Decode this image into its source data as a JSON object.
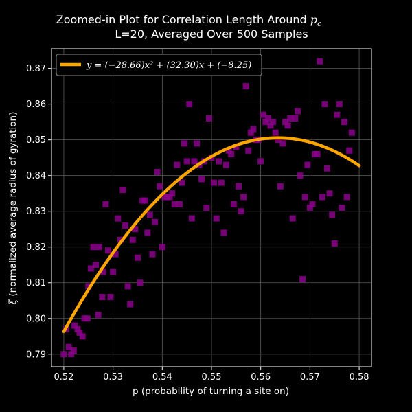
{
  "chart_data": {
    "type": "scatter",
    "title_line1": "Zoomed-in Plot for Correlation Length Around ",
    "title_symbol": "p",
    "title_subscript": "c",
    "title_line2": "L=20, Averaged Over 500 Samples",
    "xlabel": "p (probability of turning a site on)",
    "ylabel_symbol": "ξ",
    "ylabel_text": " (normalized average radius of gyration)",
    "xlim": [
      0.5175,
      0.5825
    ],
    "ylim": [
      0.7865,
      0.8755
    ],
    "xticks": [
      0.52,
      0.53,
      0.54,
      0.55,
      0.56,
      0.57,
      0.58
    ],
    "xtick_labels": [
      "0.52",
      "0.53",
      "0.54",
      "0.55",
      "0.56",
      "0.57",
      "0.58"
    ],
    "yticks": [
      0.79,
      0.8,
      0.81,
      0.82,
      0.83,
      0.84,
      0.85,
      0.86,
      0.87
    ],
    "ytick_labels": [
      "0.79",
      "0.80",
      "0.81",
      "0.82",
      "0.83",
      "0.84",
      "0.85",
      "0.86",
      "0.87"
    ],
    "grid": true,
    "legend_placement": "top-left",
    "legend_label": "y = (−28.66)x² + (32.30)x + (−8.25)",
    "fit": {
      "a": -28.66,
      "b": 32.3,
      "c": -8.25,
      "x_range": [
        0.52,
        0.58
      ]
    },
    "colors": {
      "marker": "#8b008b",
      "fit_line": "#ffa500",
      "background": "#000000",
      "grid": "#5a5a5a"
    },
    "points": [
      [
        0.52,
        0.79
      ],
      [
        0.5205,
        0.797
      ],
      [
        0.521,
        0.792
      ],
      [
        0.5215,
        0.79
      ],
      [
        0.522,
        0.791
      ],
      [
        0.5222,
        0.798
      ],
      [
        0.5228,
        0.797
      ],
      [
        0.5232,
        0.796
      ],
      [
        0.5238,
        0.795
      ],
      [
        0.5242,
        0.8
      ],
      [
        0.5248,
        0.8
      ],
      [
        0.525,
        0.809
      ],
      [
        0.5255,
        0.814
      ],
      [
        0.526,
        0.82
      ],
      [
        0.5265,
        0.815
      ],
      [
        0.527,
        0.801
      ],
      [
        0.5272,
        0.82
      ],
      [
        0.5278,
        0.806
      ],
      [
        0.528,
        0.813
      ],
      [
        0.5285,
        0.832
      ],
      [
        0.529,
        0.819
      ],
      [
        0.5295,
        0.806
      ],
      [
        0.53,
        0.813
      ],
      [
        0.5305,
        0.818
      ],
      [
        0.531,
        0.828
      ],
      [
        0.5315,
        0.822
      ],
      [
        0.532,
        0.836
      ],
      [
        0.5325,
        0.826
      ],
      [
        0.533,
        0.809
      ],
      [
        0.5335,
        0.804
      ],
      [
        0.534,
        0.822
      ],
      [
        0.5345,
        0.825
      ],
      [
        0.535,
        0.817
      ],
      [
        0.5355,
        0.81
      ],
      [
        0.536,
        0.833
      ],
      [
        0.5365,
        0.833
      ],
      [
        0.537,
        0.824
      ],
      [
        0.5375,
        0.829
      ],
      [
        0.538,
        0.818
      ],
      [
        0.5385,
        0.827
      ],
      [
        0.539,
        0.841
      ],
      [
        0.5395,
        0.837
      ],
      [
        0.54,
        0.82
      ],
      [
        0.5405,
        0.834
      ],
      [
        0.541,
        0.834
      ],
      [
        0.5415,
        0.834
      ],
      [
        0.542,
        0.835
      ],
      [
        0.5425,
        0.832
      ],
      [
        0.543,
        0.843
      ],
      [
        0.5435,
        0.832
      ],
      [
        0.544,
        0.838
      ],
      [
        0.5445,
        0.849
      ],
      [
        0.545,
        0.844
      ],
      [
        0.5455,
        0.86
      ],
      [
        0.546,
        0.828
      ],
      [
        0.5465,
        0.844
      ],
      [
        0.547,
        0.849
      ],
      [
        0.5475,
        0.843
      ],
      [
        0.548,
        0.839
      ],
      [
        0.5485,
        0.844
      ],
      [
        0.549,
        0.831
      ],
      [
        0.5495,
        0.856
      ],
      [
        0.55,
        0.845
      ],
      [
        0.5505,
        0.838
      ],
      [
        0.551,
        0.828
      ],
      [
        0.5515,
        0.844
      ],
      [
        0.552,
        0.838
      ],
      [
        0.5525,
        0.824
      ],
      [
        0.553,
        0.843
      ],
      [
        0.5535,
        0.847
      ],
      [
        0.554,
        0.846
      ],
      [
        0.5545,
        0.832
      ],
      [
        0.555,
        0.848
      ],
      [
        0.5555,
        0.837
      ],
      [
        0.556,
        0.83
      ],
      [
        0.5565,
        0.834
      ],
      [
        0.557,
        0.865
      ],
      [
        0.5575,
        0.847
      ],
      [
        0.558,
        0.852
      ],
      [
        0.5585,
        0.853
      ],
      [
        0.559,
        0.85
      ],
      [
        0.5595,
        0.85
      ],
      [
        0.56,
        0.844
      ],
      [
        0.5605,
        0.857
      ],
      [
        0.561,
        0.855
      ],
      [
        0.5615,
        0.856
      ],
      [
        0.562,
        0.854
      ],
      [
        0.5625,
        0.855
      ],
      [
        0.563,
        0.852
      ],
      [
        0.5635,
        0.85
      ],
      [
        0.564,
        0.837
      ],
      [
        0.5645,
        0.849
      ],
      [
        0.565,
        0.855
      ],
      [
        0.5655,
        0.854
      ],
      [
        0.566,
        0.856
      ],
      [
        0.5665,
        0.828
      ],
      [
        0.567,
        0.856
      ],
      [
        0.5675,
        0.858
      ],
      [
        0.568,
        0.84
      ],
      [
        0.5685,
        0.811
      ],
      [
        0.569,
        0.834
      ],
      [
        0.5695,
        0.843
      ],
      [
        0.57,
        0.831
      ],
      [
        0.5705,
        0.832
      ],
      [
        0.571,
        0.846
      ],
      [
        0.5715,
        0.846
      ],
      [
        0.572,
        0.872
      ],
      [
        0.5725,
        0.834
      ],
      [
        0.573,
        0.86
      ],
      [
        0.5735,
        0.842
      ],
      [
        0.574,
        0.835
      ],
      [
        0.5745,
        0.829
      ],
      [
        0.575,
        0.821
      ],
      [
        0.5755,
        0.857
      ],
      [
        0.576,
        0.86
      ],
      [
        0.5765,
        0.831
      ],
      [
        0.577,
        0.855
      ],
      [
        0.5775,
        0.834
      ],
      [
        0.578,
        0.847
      ],
      [
        0.5785,
        0.852
      ]
    ]
  }
}
